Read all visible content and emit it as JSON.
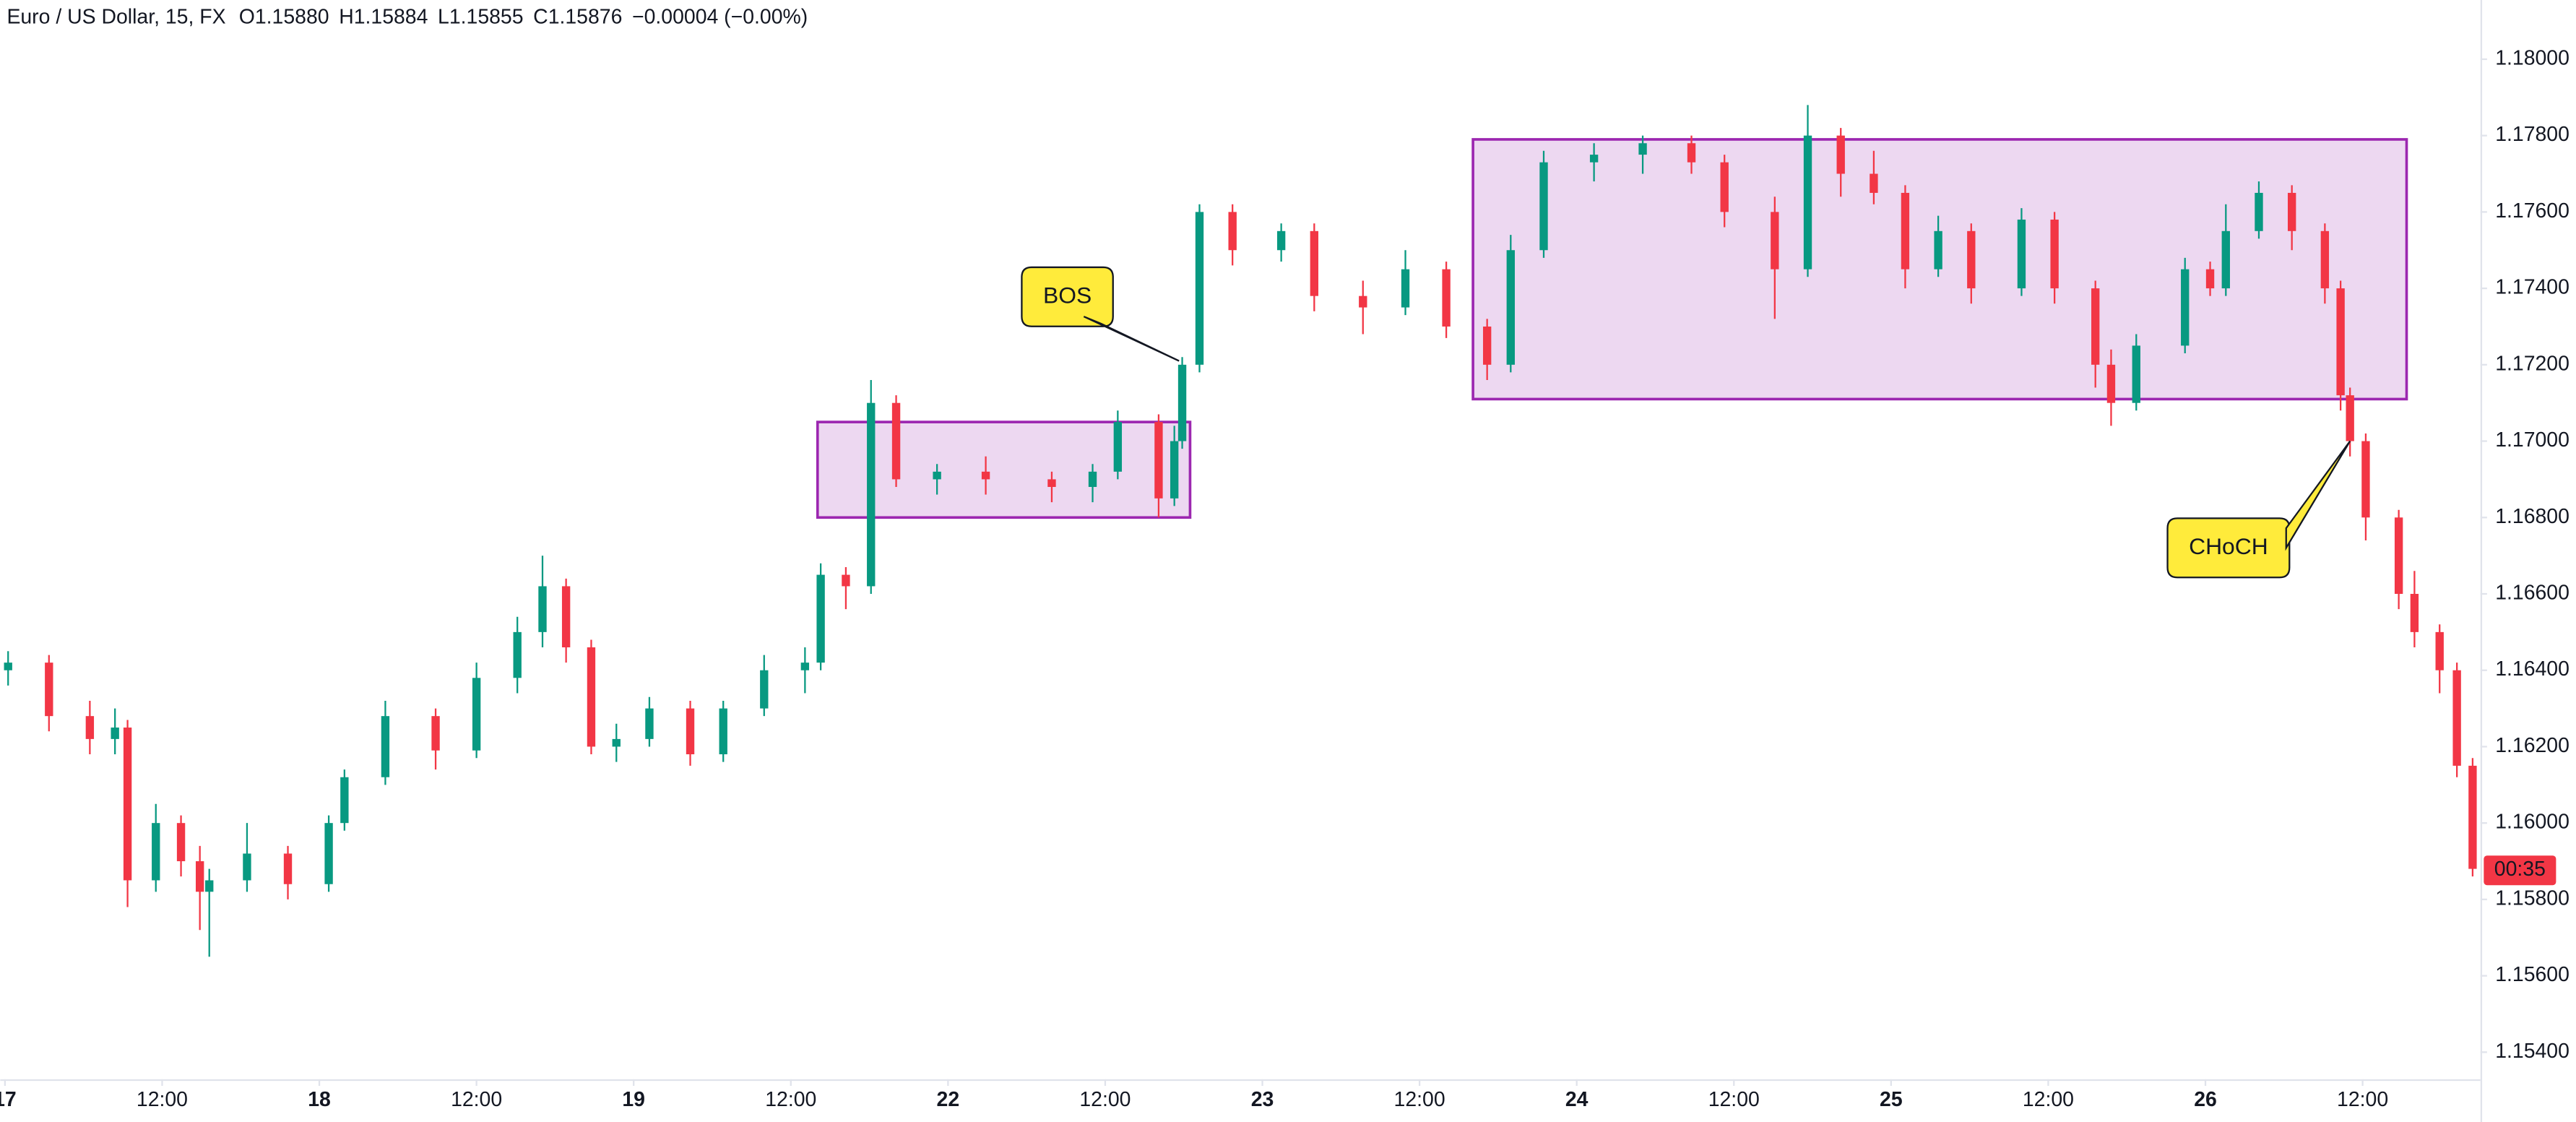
{
  "chart_data": {
    "type": "candlestick",
    "title": "Euro / US Dollar, 15, FX",
    "header_values": [
      {
        "label": "O",
        "text": "1.15880"
      },
      {
        "label": "H",
        "text": "1.15884"
      },
      {
        "label": "L",
        "text": "1.15855"
      },
      {
        "label": "C",
        "text": "1.15876"
      }
    ],
    "change": "−0.00004 (−0.00%)",
    "up_color": "#089981",
    "down_color": "#f23645",
    "x": [
      0.02,
      0.28,
      0.54,
      0.7,
      0.78,
      0.96,
      1.12,
      1.24,
      1.3,
      1.54,
      1.8,
      2.06,
      2.16,
      2.42,
      2.74,
      3.0,
      3.26,
      3.42,
      3.57,
      3.73,
      3.89,
      4.1,
      4.36,
      4.57,
      4.83,
      5.09,
      5.19,
      5.35,
      5.51,
      5.67,
      5.93,
      6.24,
      6.66,
      6.92,
      7.08,
      7.34,
      7.44,
      7.49,
      7.6,
      7.81,
      8.12,
      8.33,
      8.64,
      8.91,
      9.17,
      9.43,
      9.58,
      9.79,
      10.11,
      10.42,
      10.73,
      10.94,
      11.26,
      11.47,
      11.68,
      11.89,
      12.09,
      12.3,
      12.51,
      12.83,
      13.04,
      13.3,
      13.4,
      13.56,
      13.87,
      14.03,
      14.13,
      14.34,
      14.55,
      14.76,
      14.86,
      14.92,
      15.02,
      15.23,
      15.33,
      15.49,
      15.6,
      15.7
    ],
    "open": [
      1.164,
      1.1642,
      1.1628,
      1.1622,
      1.1625,
      1.1585,
      1.16,
      1.159,
      1.1582,
      1.1585,
      1.1592,
      1.1584,
      1.16,
      1.1612,
      1.1628,
      1.1619,
      1.1638,
      1.165,
      1.1662,
      1.1646,
      1.162,
      1.1622,
      1.163,
      1.1618,
      1.163,
      1.164,
      1.1642,
      1.1665,
      1.1662,
      1.171,
      1.169,
      1.1692,
      1.169,
      1.1688,
      1.1692,
      1.1705,
      1.1685,
      1.17,
      1.172,
      1.176,
      1.175,
      1.1755,
      1.1738,
      1.1735,
      1.1745,
      1.173,
      1.172,
      1.175,
      1.1773,
      1.1775,
      1.1778,
      1.1773,
      1.176,
      1.1745,
      1.178,
      1.177,
      1.1765,
      1.1745,
      1.1755,
      1.174,
      1.1758,
      1.174,
      1.172,
      1.171,
      1.1725,
      1.1745,
      1.174,
      1.1755,
      1.1765,
      1.1755,
      1.174,
      1.1712,
      1.17,
      1.168,
      1.166,
      1.165,
      1.164,
      1.1615
    ],
    "high": [
      1.1645,
      1.1644,
      1.1632,
      1.163,
      1.1627,
      1.1605,
      1.1602,
      1.1594,
      1.1588,
      1.16,
      1.1594,
      1.1602,
      1.1614,
      1.1632,
      1.163,
      1.1642,
      1.1654,
      1.167,
      1.1664,
      1.1648,
      1.1626,
      1.1633,
      1.1632,
      1.1632,
      1.1644,
      1.1646,
      1.1668,
      1.1667,
      1.1716,
      1.1712,
      1.1694,
      1.1696,
      1.1692,
      1.1694,
      1.1708,
      1.1707,
      1.1704,
      1.1722,
      1.1762,
      1.1762,
      1.1757,
      1.1757,
      1.1742,
      1.175,
      1.1747,
      1.1732,
      1.1754,
      1.1776,
      1.1778,
      1.178,
      1.178,
      1.1775,
      1.1764,
      1.1788,
      1.1782,
      1.1776,
      1.1767,
      1.1759,
      1.1757,
      1.1761,
      1.176,
      1.1742,
      1.1724,
      1.1728,
      1.1748,
      1.1747,
      1.1762,
      1.1768,
      1.1767,
      1.1757,
      1.1742,
      1.1714,
      1.1702,
      1.1682,
      1.1666,
      1.1652,
      1.1642,
      1.1617
    ],
    "low": [
      1.1636,
      1.1624,
      1.1618,
      1.1618,
      1.1578,
      1.1582,
      1.1586,
      1.1572,
      1.1565,
      1.1582,
      1.158,
      1.1582,
      1.1598,
      1.161,
      1.1614,
      1.1617,
      1.1634,
      1.1646,
      1.1642,
      1.1618,
      1.1616,
      1.162,
      1.1615,
      1.1616,
      1.1628,
      1.1634,
      1.164,
      1.1656,
      1.166,
      1.1688,
      1.1686,
      1.1686,
      1.1684,
      1.1684,
      1.169,
      1.168,
      1.1683,
      1.1698,
      1.1718,
      1.1746,
      1.1747,
      1.1734,
      1.1728,
      1.1733,
      1.1727,
      1.1716,
      1.1718,
      1.1748,
      1.1768,
      1.177,
      1.177,
      1.1756,
      1.1732,
      1.1743,
      1.1764,
      1.1762,
      1.174,
      1.1743,
      1.1736,
      1.1738,
      1.1736,
      1.1714,
      1.1704,
      1.1708,
      1.1723,
      1.1738,
      1.1738,
      1.1753,
      1.175,
      1.1736,
      1.1708,
      1.1696,
      1.1674,
      1.1656,
      1.1646,
      1.1634,
      1.1612,
      1.1586
    ],
    "close": [
      1.1642,
      1.1628,
      1.1622,
      1.1625,
      1.1585,
      1.16,
      1.159,
      1.1582,
      1.1585,
      1.1592,
      1.1584,
      1.16,
      1.1612,
      1.1628,
      1.1619,
      1.1638,
      1.165,
      1.1662,
      1.1646,
      1.162,
      1.1622,
      1.163,
      1.1618,
      1.163,
      1.164,
      1.1642,
      1.1665,
      1.1662,
      1.171,
      1.169,
      1.1692,
      1.169,
      1.1688,
      1.1692,
      1.1705,
      1.1685,
      1.17,
      1.172,
      1.176,
      1.175,
      1.1755,
      1.1738,
      1.1735,
      1.1745,
      1.173,
      1.172,
      1.175,
      1.1773,
      1.1775,
      1.1778,
      1.1773,
      1.176,
      1.1745,
      1.178,
      1.177,
      1.1765,
      1.1745,
      1.1755,
      1.174,
      1.1758,
      1.174,
      1.172,
      1.171,
      1.1725,
      1.1745,
      1.174,
      1.1755,
      1.1765,
      1.1755,
      1.174,
      1.1712,
      1.17,
      1.168,
      1.166,
      1.165,
      1.164,
      1.1615,
      1.1588
    ],
    "xlim": [
      -0.03,
      15.75
    ],
    "xticks": [
      {
        "value": 0,
        "label": "17"
      },
      {
        "value": 1,
        "label": "12:00"
      },
      {
        "value": 2,
        "label": "18"
      },
      {
        "value": 3,
        "label": "12:00"
      },
      {
        "value": 4,
        "label": "19"
      },
      {
        "value": 5,
        "label": "12:00"
      },
      {
        "value": 6,
        "label": "22"
      },
      {
        "value": 7,
        "label": "12:00"
      },
      {
        "value": 8,
        "label": "23"
      },
      {
        "value": 9,
        "label": "12:00"
      },
      {
        "value": 10,
        "label": "24"
      },
      {
        "value": 11,
        "label": "12:00"
      },
      {
        "value": 12,
        "label": "25"
      },
      {
        "value": 13,
        "label": "12:00"
      },
      {
        "value": 14,
        "label": "26"
      },
      {
        "value": 15,
        "label": "12:00"
      }
    ],
    "ylim": [
      1.15329,
      1.18155
    ],
    "yticks": [
      {
        "value": 1.18,
        "label": "1.18000"
      },
      {
        "value": 1.178,
        "label": "1.17800"
      },
      {
        "value": 1.176,
        "label": "1.17600"
      },
      {
        "value": 1.174,
        "label": "1.17400"
      },
      {
        "value": 1.172,
        "label": "1.17200"
      },
      {
        "value": 1.17,
        "label": "1.17000"
      },
      {
        "value": 1.168,
        "label": "1.16800"
      },
      {
        "value": 1.166,
        "label": "1.16600"
      },
      {
        "value": 1.164,
        "label": "1.16400"
      },
      {
        "value": 1.162,
        "label": "1.16200"
      },
      {
        "value": 1.16,
        "label": "1.16000"
      },
      {
        "value": 1.158,
        "label": "1.15800"
      },
      {
        "value": 1.156,
        "label": "1.15600"
      },
      {
        "value": 1.154,
        "label": "1.15400"
      }
    ],
    "last_close": 1.15876,
    "countdown": "00:35",
    "zones": [
      {
        "x": [
          5.17,
          7.54
        ],
        "y": [
          1.168,
          1.1705
        ]
      },
      {
        "x": [
          9.34,
          15.28
        ],
        "y": [
          1.1711,
          1.1779
        ]
      }
    ],
    "zone_color": "#9c27b0",
    "annotations": [
      {
        "text": "BOS",
        "x": 7.47,
        "y": 1.1721
      },
      {
        "text": "CHoCH",
        "x": 14.92,
        "y": 1.17
      }
    ]
  }
}
